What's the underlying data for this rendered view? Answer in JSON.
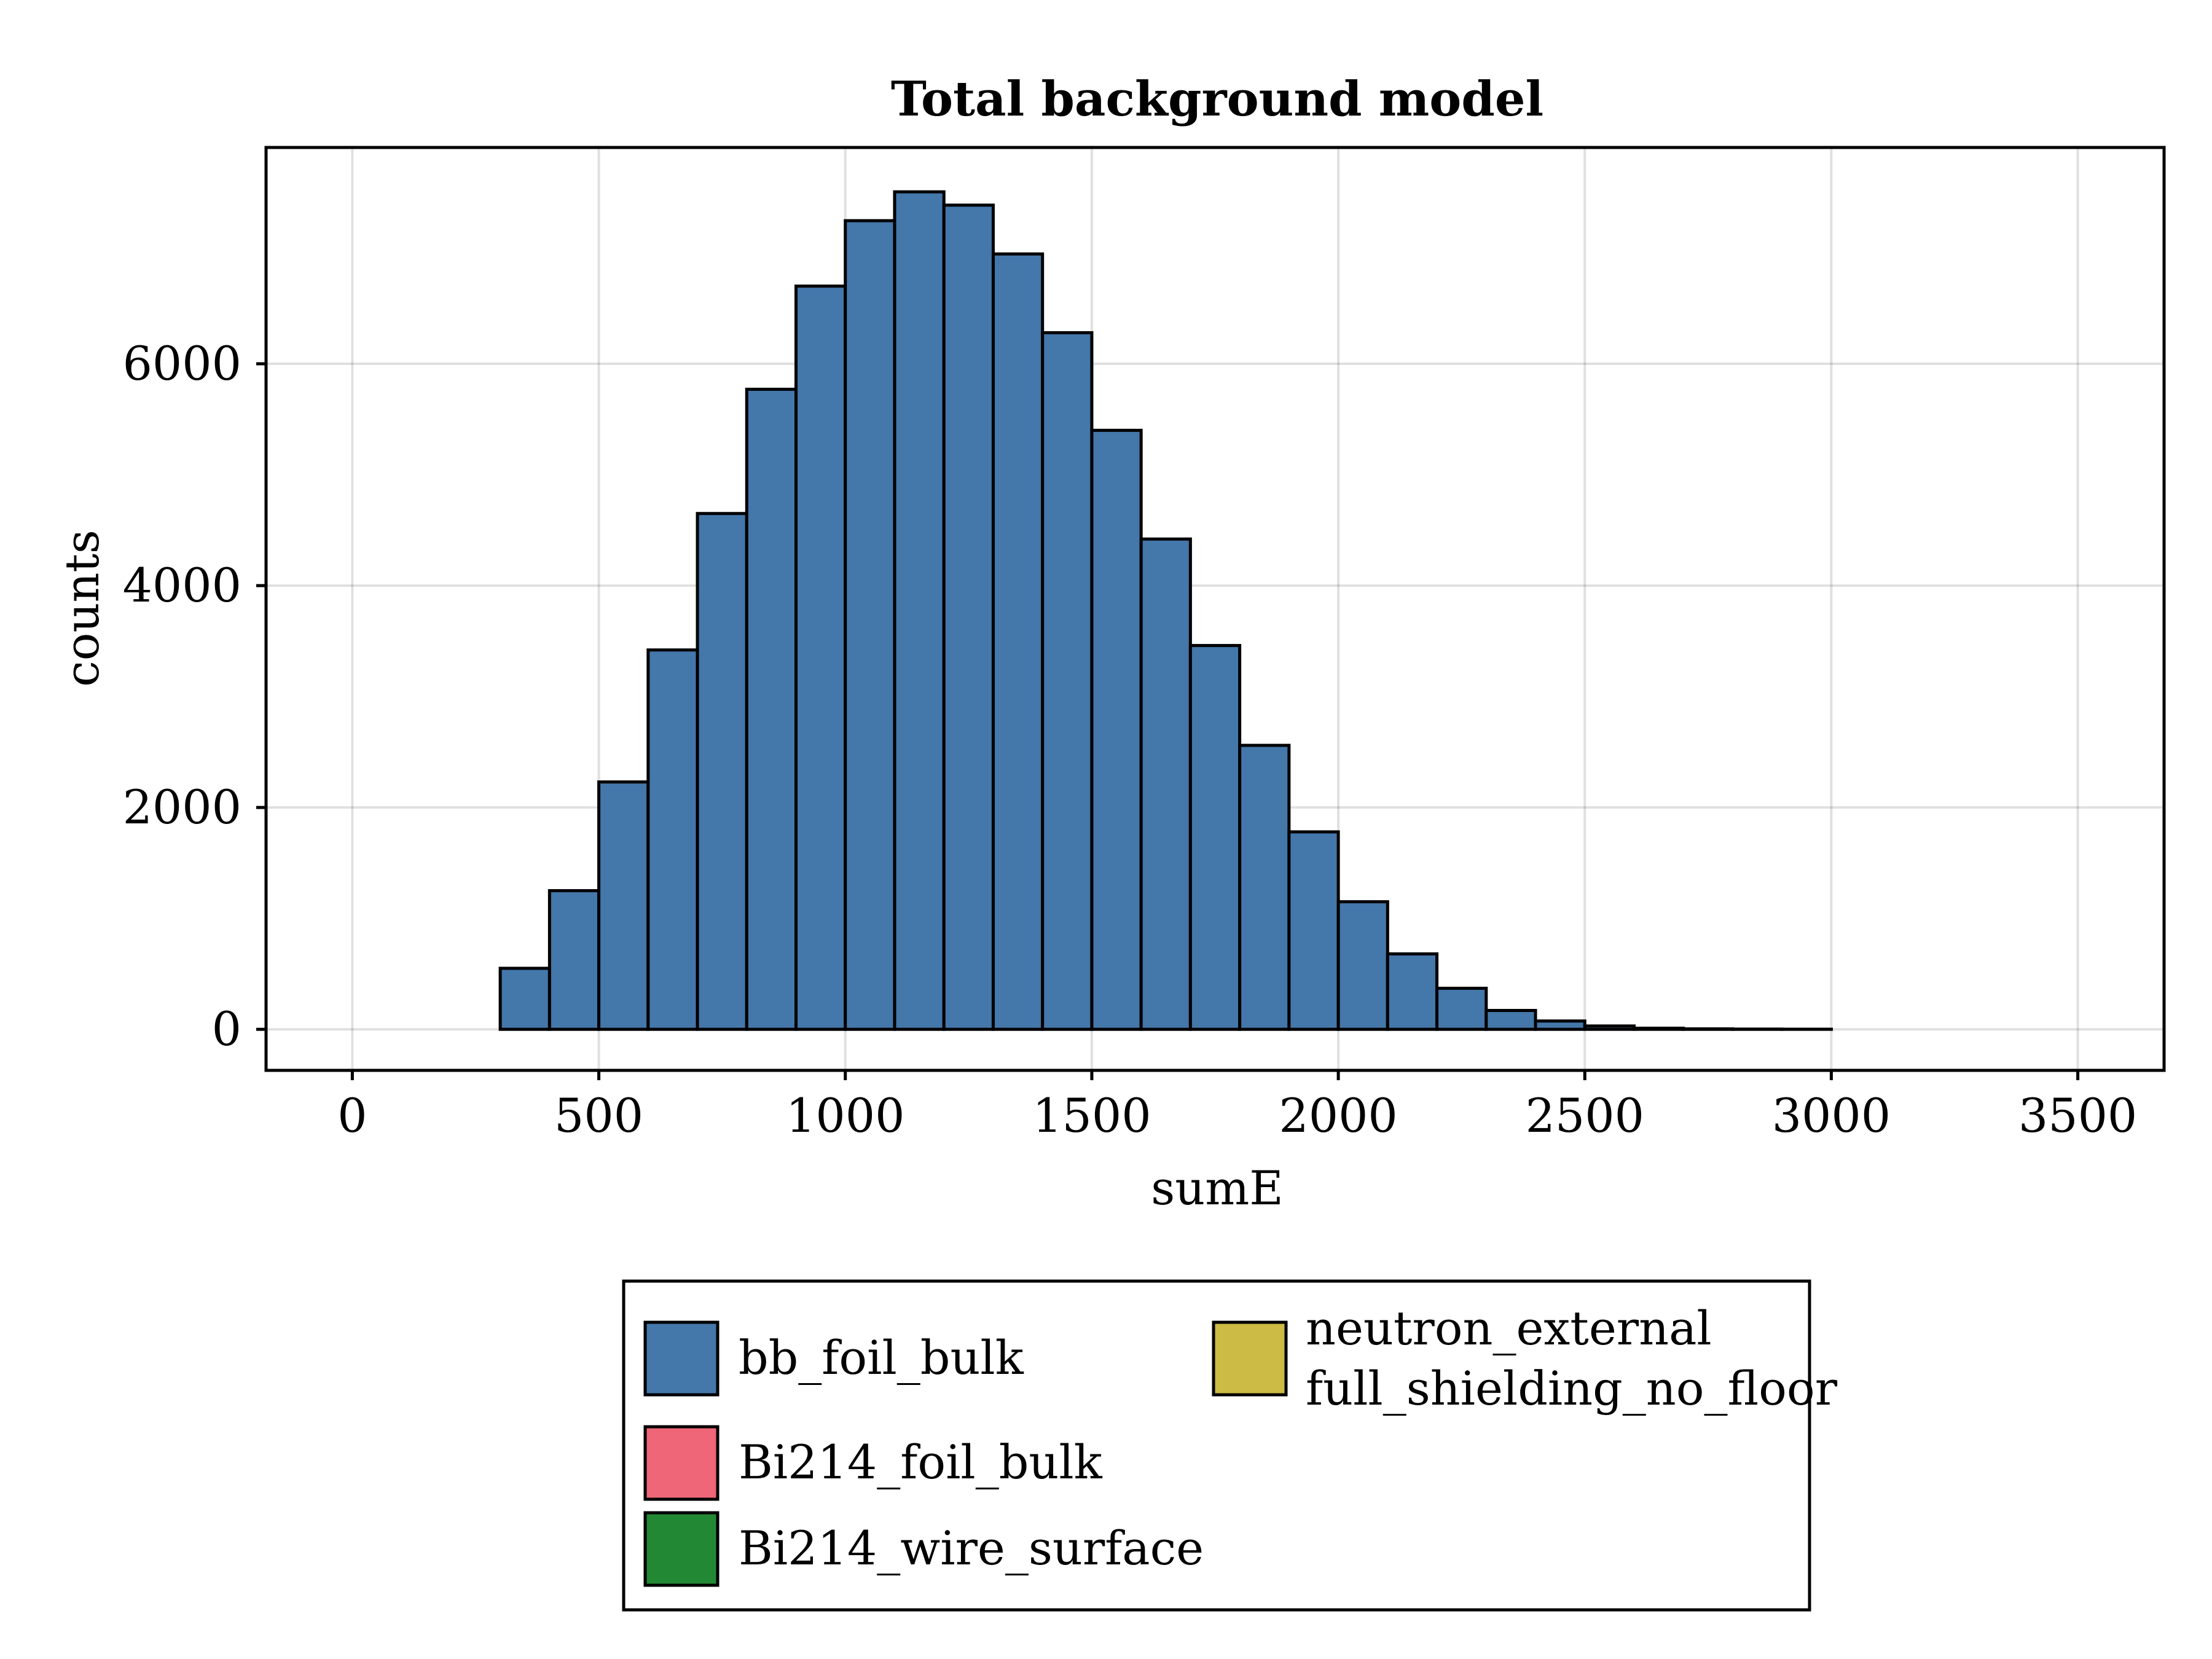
{
  "chart_data": {
    "type": "bar",
    "title": "Total background model",
    "xlabel": "sumE",
    "ylabel": "counts",
    "xlim": [
      -175,
      3175
    ],
    "ylim": [
      -370,
      7950
    ],
    "xticks": [
      0,
      500,
      1000,
      1500,
      2000,
      2500,
      3000,
      3500
    ],
    "yticks": [
      0,
      2000,
      4000,
      6000
    ],
    "grid": true,
    "bin_width": 100,
    "bin_edges": [
      0,
      100,
      200,
      300,
      400,
      500,
      600,
      700,
      800,
      900,
      1000,
      1100,
      1200,
      1300,
      1400,
      1500,
      1600,
      1700,
      1800,
      1900,
      2000,
      2100,
      2200,
      2300,
      2400,
      2500,
      2600,
      2700,
      2800,
      2900,
      3000,
      3100,
      3200,
      3300,
      3400,
      3500
    ],
    "series": [
      {
        "name": "bb_foil_bulk",
        "color": "#4477aa",
        "values": [
          0,
          0,
          0,
          550,
          1250,
          2230,
          3420,
          4650,
          5770,
          6700,
          7290,
          7550,
          7430,
          6990,
          6280,
          5400,
          4420,
          3460,
          2560,
          1780,
          1150,
          680,
          370,
          170,
          75,
          30,
          10,
          4,
          2,
          1,
          0,
          0,
          0,
          0,
          0
        ]
      },
      {
        "name": "Bi214_foil_bulk",
        "color": "#ee6677",
        "values": []
      },
      {
        "name": "Bi214_wire_surface",
        "color": "#228833",
        "values": []
      },
      {
        "name": "neutron_external\nfull_shielding_no_floor",
        "color": "#ccbb44",
        "values": []
      }
    ],
    "legend_position": "bottom"
  },
  "legend": {
    "items": [
      {
        "label": "bb_foil_bulk",
        "color": "#4477aa"
      },
      {
        "label": "Bi214_foil_bulk",
        "color": "#ee6677"
      },
      {
        "label": "Bi214_wire_surface",
        "color": "#228833"
      },
      {
        "label_line1": "neutron_external",
        "label_line2": "full_shielding_no_floor",
        "color": "#ccbb44"
      }
    ]
  }
}
